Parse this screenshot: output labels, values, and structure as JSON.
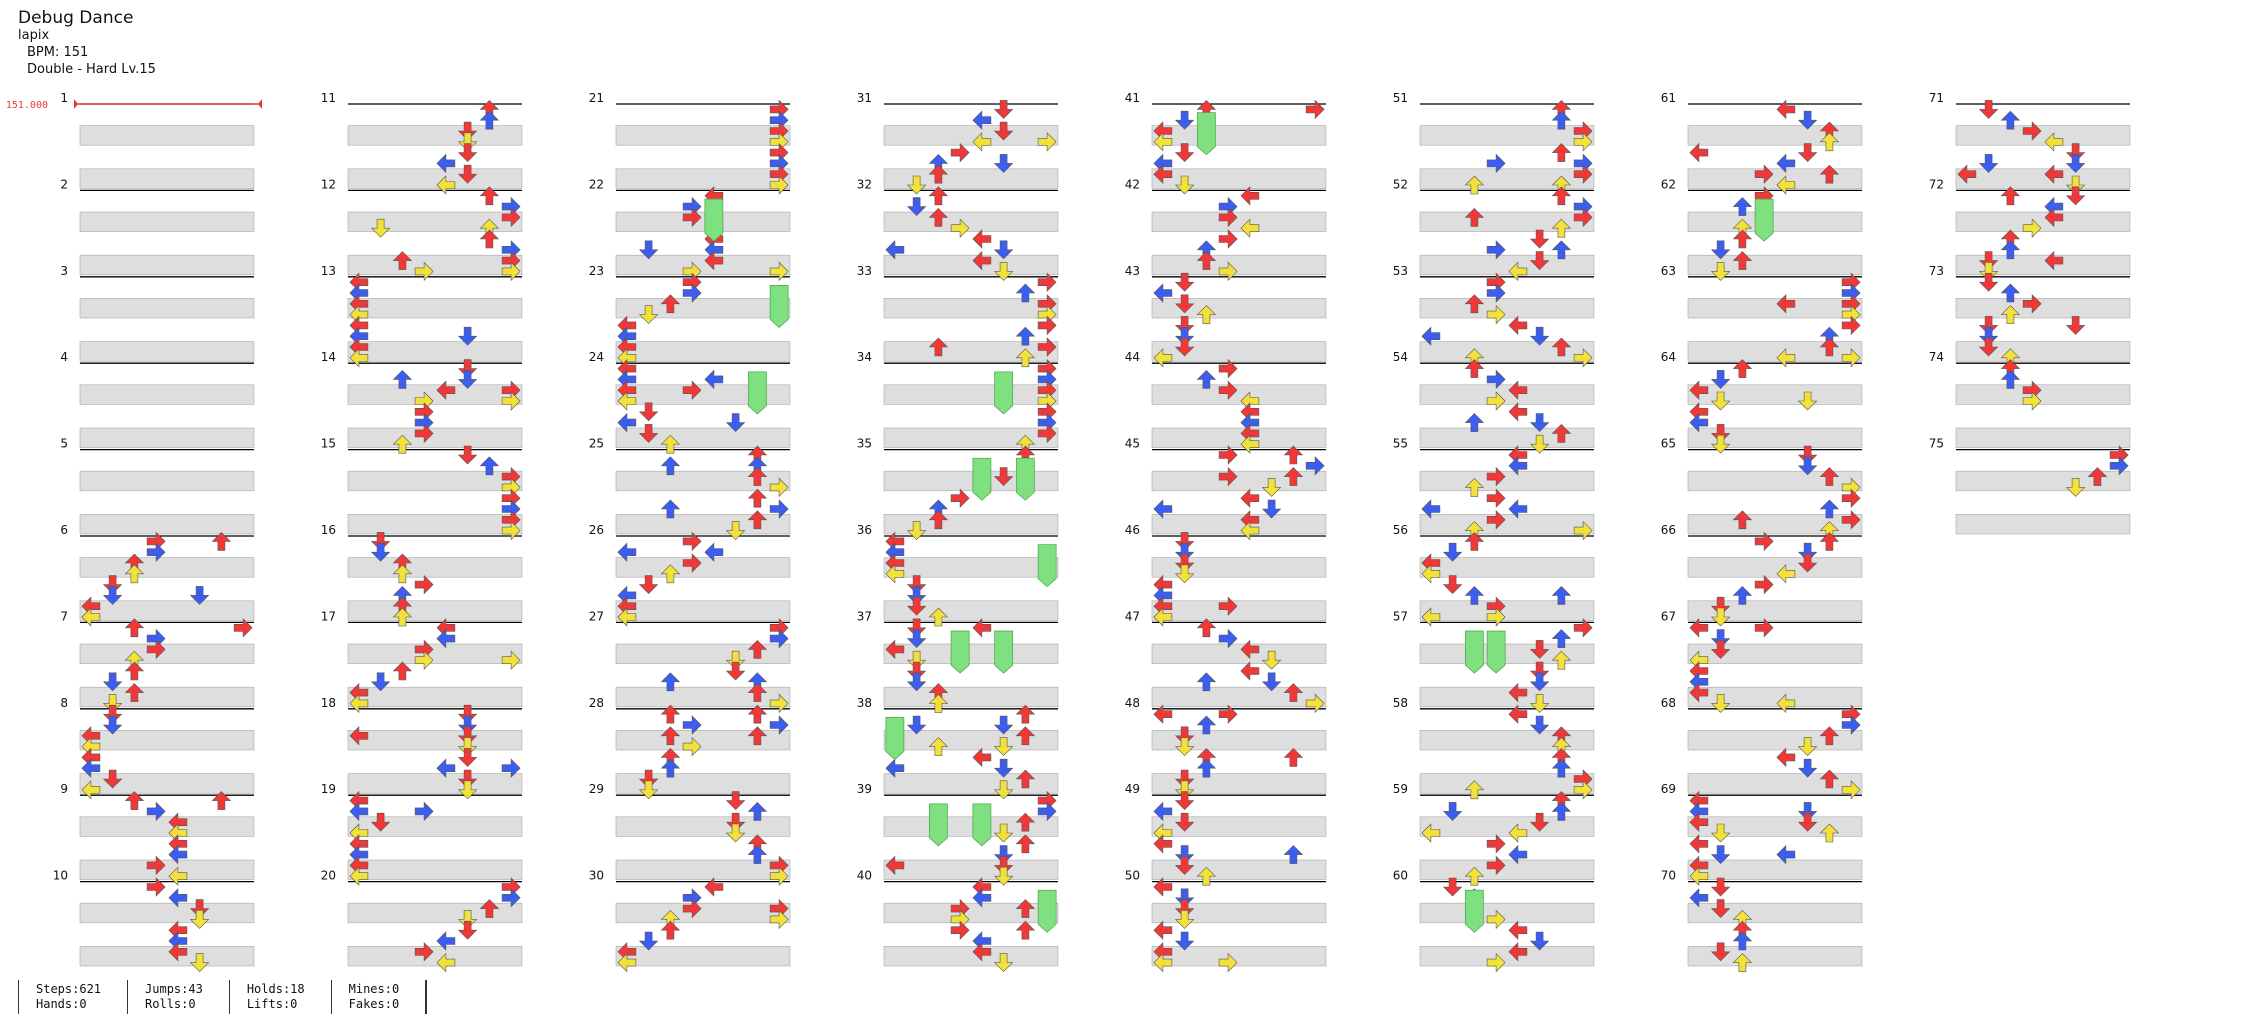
{
  "song": {
    "title": "Debug Dance",
    "artist": "lapix",
    "bpm_label": "BPM: 151",
    "chart_label": "Double - Hard  Lv.15"
  },
  "bpm_marker": "151.000",
  "colors": {
    "red": "#f03838",
    "blue": "#3b5ef0",
    "yellow": "#f2e13a",
    "hold": "#7fe07f",
    "band": "#dedede",
    "line": "#000"
  },
  "layout_meta": {
    "measures_total": 75
  },
  "stats": {
    "steps": "Steps:621",
    "hands": "Hands:0",
    "jumps": "Jumps:43",
    "rolls": "Rolls:0",
    "holds": "Holds:18",
    "lifts": "Lifts:0",
    "mines": "Mines:0",
    "fakes": "Fakes:0"
  }
}
